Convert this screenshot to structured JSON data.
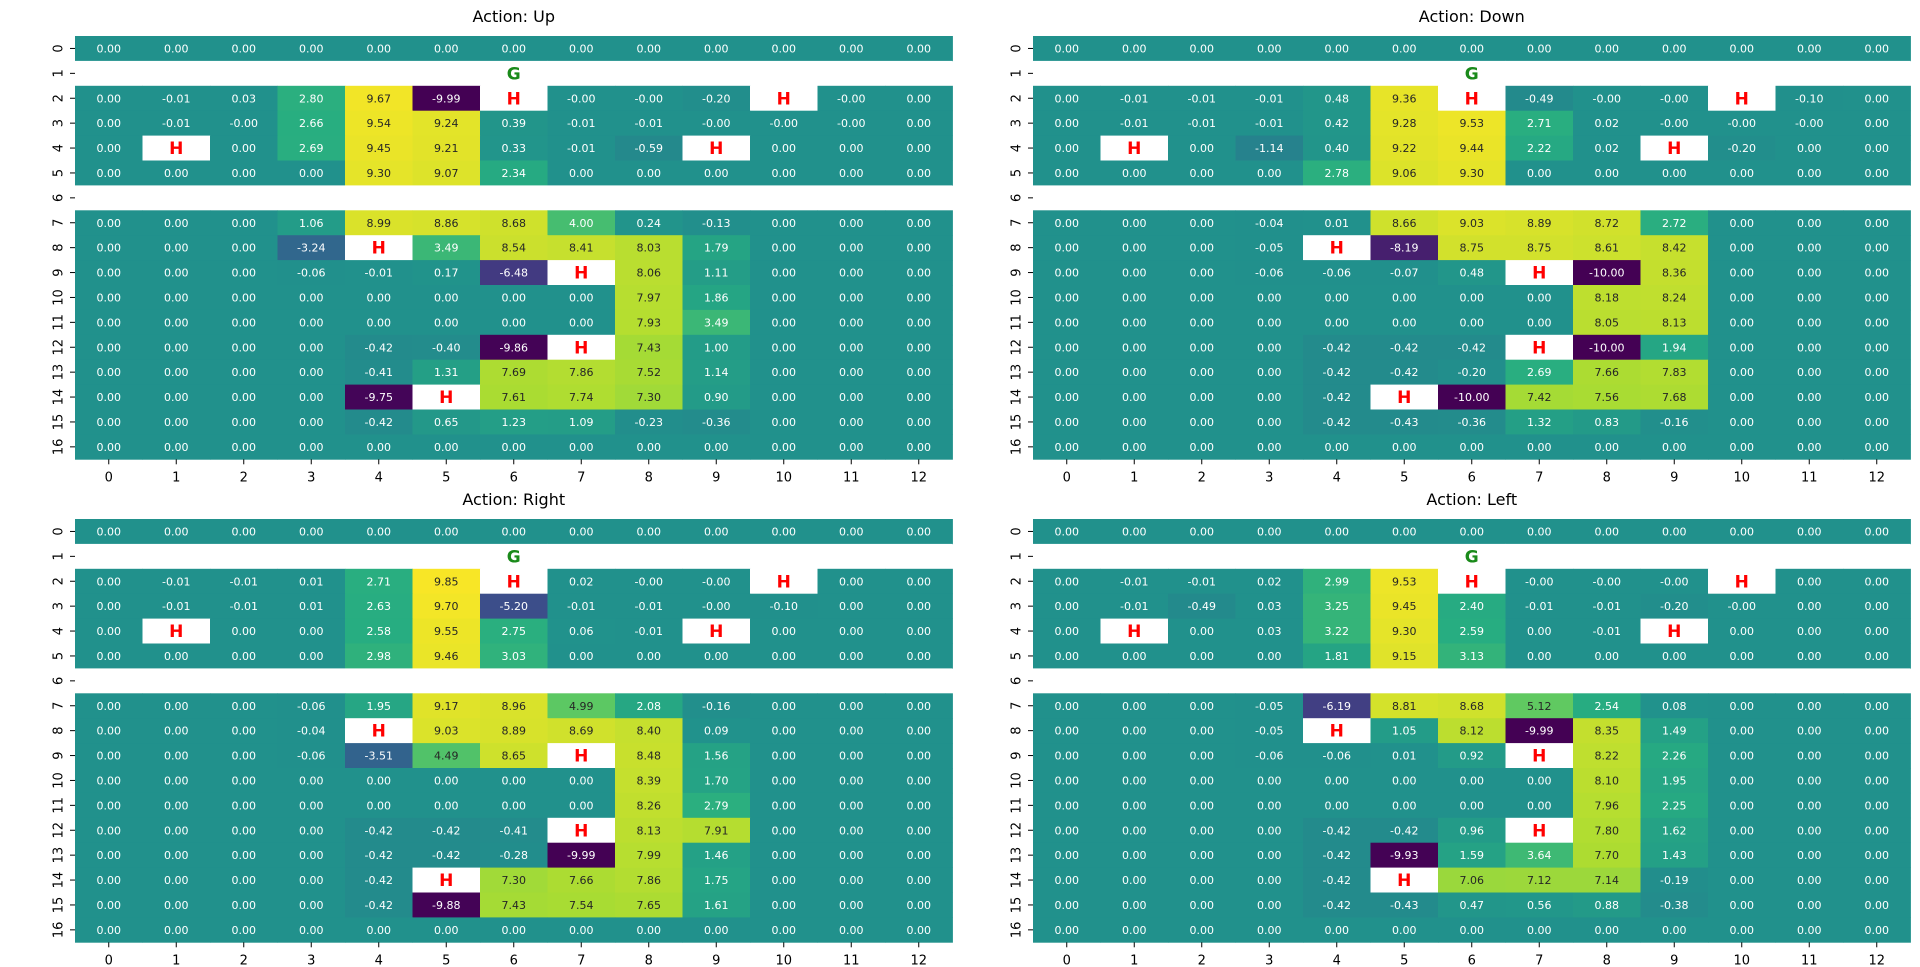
{
  "chart_data": [
    {
      "type": "heatmap",
      "title": "Action: Up",
      "xlabel": "",
      "ylabel": "",
      "x_ticks": [
        "0",
        "1",
        "2",
        "3",
        "4",
        "5",
        "6",
        "7",
        "8",
        "9",
        "10",
        "11",
        "12"
      ],
      "y_ticks": [
        "0",
        "1",
        "2",
        "3",
        "4",
        "5",
        "6",
        "7",
        "8",
        "9",
        "10",
        "11",
        "12",
        "13",
        "14",
        "15",
        "16"
      ],
      "colormap": "viridis",
      "value_range": [
        -10,
        10
      ],
      "rows": [
        [
          "0.00",
          "0.00",
          "0.00",
          "0.00",
          "0.00",
          "0.00",
          "0.00",
          "0.00",
          "0.00",
          "0.00",
          "0.00",
          "0.00",
          "0.00"
        ],
        [
          "",
          "",
          "",
          "",
          "",
          "",
          "G",
          "",
          "",
          "",
          "",
          "",
          ""
        ],
        [
          "0.00",
          "-0.01",
          "0.03",
          "2.80",
          "9.67",
          "-9.99",
          "H",
          "-0.00",
          "-0.00",
          "-0.20",
          "H",
          "-0.00",
          "0.00"
        ],
        [
          "0.00",
          "-0.01",
          "-0.00",
          "2.66",
          "9.54",
          "9.24",
          "0.39",
          "-0.01",
          "-0.01",
          "-0.00",
          "-0.00",
          "-0.00",
          "0.00"
        ],
        [
          "0.00",
          "H",
          "0.00",
          "2.69",
          "9.45",
          "9.21",
          "0.33",
          "-0.01",
          "-0.59",
          "H",
          "0.00",
          "0.00",
          "0.00"
        ],
        [
          "0.00",
          "0.00",
          "0.00",
          "0.00",
          "9.30",
          "9.07",
          "2.34",
          "0.00",
          "0.00",
          "0.00",
          "0.00",
          "0.00",
          "0.00"
        ],
        [
          "",
          "",
          "",
          "",
          "",
          "",
          "",
          "",
          "",
          "",
          "",
          "",
          ""
        ],
        [
          "0.00",
          "0.00",
          "0.00",
          "1.06",
          "8.99",
          "8.86",
          "8.68",
          "4.00",
          "0.24",
          "-0.13",
          "0.00",
          "0.00",
          "0.00"
        ],
        [
          "0.00",
          "0.00",
          "0.00",
          "-3.24",
          "H",
          "3.49",
          "8.54",
          "8.41",
          "8.03",
          "1.79",
          "0.00",
          "0.00",
          "0.00"
        ],
        [
          "0.00",
          "0.00",
          "0.00",
          "-0.06",
          "-0.01",
          "0.17",
          "-6.48",
          "H",
          "8.06",
          "1.11",
          "0.00",
          "0.00",
          "0.00"
        ],
        [
          "0.00",
          "0.00",
          "0.00",
          "0.00",
          "0.00",
          "0.00",
          "0.00",
          "0.00",
          "7.97",
          "1.86",
          "0.00",
          "0.00",
          "0.00"
        ],
        [
          "0.00",
          "0.00",
          "0.00",
          "0.00",
          "0.00",
          "0.00",
          "0.00",
          "0.00",
          "7.93",
          "3.49",
          "0.00",
          "0.00",
          "0.00"
        ],
        [
          "0.00",
          "0.00",
          "0.00",
          "0.00",
          "-0.42",
          "-0.40",
          "-9.86",
          "H",
          "7.43",
          "1.00",
          "0.00",
          "0.00",
          "0.00"
        ],
        [
          "0.00",
          "0.00",
          "0.00",
          "0.00",
          "-0.41",
          "1.31",
          "7.69",
          "7.86",
          "7.52",
          "1.14",
          "0.00",
          "0.00",
          "0.00"
        ],
        [
          "0.00",
          "0.00",
          "0.00",
          "0.00",
          "-9.75",
          "H",
          "7.61",
          "7.74",
          "7.30",
          "0.90",
          "0.00",
          "0.00",
          "0.00"
        ],
        [
          "0.00",
          "0.00",
          "0.00",
          "0.00",
          "-0.42",
          "0.65",
          "1.23",
          "1.09",
          "-0.23",
          "-0.36",
          "0.00",
          "0.00",
          "0.00"
        ],
        [
          "0.00",
          "0.00",
          "0.00",
          "0.00",
          "0.00",
          "0.00",
          "0.00",
          "0.00",
          "0.00",
          "0.00",
          "0.00",
          "0.00",
          "0.00"
        ]
      ]
    },
    {
      "type": "heatmap",
      "title": "Action: Down",
      "xlabel": "",
      "ylabel": "",
      "x_ticks": [
        "0",
        "1",
        "2",
        "3",
        "4",
        "5",
        "6",
        "7",
        "8",
        "9",
        "10",
        "11",
        "12"
      ],
      "y_ticks": [
        "0",
        "1",
        "2",
        "3",
        "4",
        "5",
        "6",
        "7",
        "8",
        "9",
        "10",
        "11",
        "12",
        "13",
        "14",
        "15",
        "16"
      ],
      "colormap": "viridis",
      "value_range": [
        -10,
        10
      ],
      "rows": [
        [
          "0.00",
          "0.00",
          "0.00",
          "0.00",
          "0.00",
          "0.00",
          "0.00",
          "0.00",
          "0.00",
          "0.00",
          "0.00",
          "0.00",
          "0.00"
        ],
        [
          "",
          "",
          "",
          "",
          "",
          "",
          "G",
          "",
          "",
          "",
          "",
          "",
          ""
        ],
        [
          "0.00",
          "-0.01",
          "-0.01",
          "-0.01",
          "0.48",
          "9.36",
          "H",
          "-0.49",
          "-0.00",
          "-0.00",
          "H",
          "-0.10",
          "0.00"
        ],
        [
          "0.00",
          "-0.01",
          "-0.01",
          "-0.01",
          "0.42",
          "9.28",
          "9.53",
          "2.71",
          "0.02",
          "-0.00",
          "-0.00",
          "-0.00",
          "0.00"
        ],
        [
          "0.00",
          "H",
          "0.00",
          "-1.14",
          "0.40",
          "9.22",
          "9.44",
          "2.22",
          "0.02",
          "H",
          "-0.20",
          "0.00",
          "0.00"
        ],
        [
          "0.00",
          "0.00",
          "0.00",
          "0.00",
          "2.78",
          "9.06",
          "9.30",
          "0.00",
          "0.00",
          "0.00",
          "0.00",
          "0.00",
          "0.00"
        ],
        [
          "",
          "",
          "",
          "",
          "",
          "",
          "",
          "",
          "",
          "",
          "",
          "",
          ""
        ],
        [
          "0.00",
          "0.00",
          "0.00",
          "-0.04",
          "0.01",
          "8.66",
          "9.03",
          "8.89",
          "8.72",
          "2.72",
          "0.00",
          "0.00",
          "0.00"
        ],
        [
          "0.00",
          "0.00",
          "0.00",
          "-0.05",
          "H",
          "-8.19",
          "8.75",
          "8.75",
          "8.61",
          "8.42",
          "0.00",
          "0.00",
          "0.00"
        ],
        [
          "0.00",
          "0.00",
          "0.00",
          "-0.06",
          "-0.06",
          "-0.07",
          "0.48",
          "H",
          "-10.00",
          "8.36",
          "0.00",
          "0.00",
          "0.00"
        ],
        [
          "0.00",
          "0.00",
          "0.00",
          "0.00",
          "0.00",
          "0.00",
          "0.00",
          "0.00",
          "8.18",
          "8.24",
          "0.00",
          "0.00",
          "0.00"
        ],
        [
          "0.00",
          "0.00",
          "0.00",
          "0.00",
          "0.00",
          "0.00",
          "0.00",
          "0.00",
          "8.05",
          "8.13",
          "0.00",
          "0.00",
          "0.00"
        ],
        [
          "0.00",
          "0.00",
          "0.00",
          "0.00",
          "-0.42",
          "-0.42",
          "-0.42",
          "H",
          "-10.00",
          "1.94",
          "0.00",
          "0.00",
          "0.00"
        ],
        [
          "0.00",
          "0.00",
          "0.00",
          "0.00",
          "-0.42",
          "-0.42",
          "-0.20",
          "2.69",
          "7.66",
          "7.83",
          "0.00",
          "0.00",
          "0.00"
        ],
        [
          "0.00",
          "0.00",
          "0.00",
          "0.00",
          "-0.42",
          "H",
          "-10.00",
          "7.42",
          "7.56",
          "7.68",
          "0.00",
          "0.00",
          "0.00"
        ],
        [
          "0.00",
          "0.00",
          "0.00",
          "0.00",
          "-0.42",
          "-0.43",
          "-0.36",
          "1.32",
          "0.83",
          "-0.16",
          "0.00",
          "0.00",
          "0.00"
        ],
        [
          "0.00",
          "0.00",
          "0.00",
          "0.00",
          "0.00",
          "0.00",
          "0.00",
          "0.00",
          "0.00",
          "0.00",
          "0.00",
          "0.00",
          "0.00"
        ]
      ]
    },
    {
      "type": "heatmap",
      "title": "Action: Right",
      "xlabel": "",
      "ylabel": "",
      "x_ticks": [
        "0",
        "1",
        "2",
        "3",
        "4",
        "5",
        "6",
        "7",
        "8",
        "9",
        "10",
        "11",
        "12"
      ],
      "y_ticks": [
        "0",
        "1",
        "2",
        "3",
        "4",
        "5",
        "6",
        "7",
        "8",
        "9",
        "10",
        "11",
        "12",
        "13",
        "14",
        "15",
        "16"
      ],
      "colormap": "viridis",
      "value_range": [
        -10,
        10
      ],
      "rows": [
        [
          "0.00",
          "0.00",
          "0.00",
          "0.00",
          "0.00",
          "0.00",
          "0.00",
          "0.00",
          "0.00",
          "0.00",
          "0.00",
          "0.00",
          "0.00"
        ],
        [
          "",
          "",
          "",
          "",
          "",
          "",
          "G",
          "",
          "",
          "",
          "",
          "",
          ""
        ],
        [
          "0.00",
          "-0.01",
          "-0.01",
          "0.01",
          "2.71",
          "9.85",
          "H",
          "0.02",
          "-0.00",
          "-0.00",
          "H",
          "0.00",
          "0.00"
        ],
        [
          "0.00",
          "-0.01",
          "-0.01",
          "0.01",
          "2.63",
          "9.70",
          "-5.20",
          "-0.01",
          "-0.01",
          "-0.00",
          "-0.10",
          "0.00",
          "0.00"
        ],
        [
          "0.00",
          "H",
          "0.00",
          "0.00",
          "2.58",
          "9.55",
          "2.75",
          "0.06",
          "-0.01",
          "H",
          "0.00",
          "0.00",
          "0.00"
        ],
        [
          "0.00",
          "0.00",
          "0.00",
          "0.00",
          "2.98",
          "9.46",
          "3.03",
          "0.00",
          "0.00",
          "0.00",
          "0.00",
          "0.00",
          "0.00"
        ],
        [
          "",
          "",
          "",
          "",
          "",
          "",
          "",
          "",
          "",
          "",
          "",
          "",
          ""
        ],
        [
          "0.00",
          "0.00",
          "0.00",
          "-0.06",
          "1.95",
          "9.17",
          "8.96",
          "4.99",
          "2.08",
          "-0.16",
          "0.00",
          "0.00",
          "0.00"
        ],
        [
          "0.00",
          "0.00",
          "0.00",
          "-0.04",
          "H",
          "9.03",
          "8.89",
          "8.69",
          "8.40",
          "0.09",
          "0.00",
          "0.00",
          "0.00"
        ],
        [
          "0.00",
          "0.00",
          "0.00",
          "-0.06",
          "-3.51",
          "4.49",
          "8.65",
          "H",
          "8.48",
          "1.56",
          "0.00",
          "0.00",
          "0.00"
        ],
        [
          "0.00",
          "0.00",
          "0.00",
          "0.00",
          "0.00",
          "0.00",
          "0.00",
          "0.00",
          "8.39",
          "1.70",
          "0.00",
          "0.00",
          "0.00"
        ],
        [
          "0.00",
          "0.00",
          "0.00",
          "0.00",
          "0.00",
          "0.00",
          "0.00",
          "0.00",
          "8.26",
          "2.79",
          "0.00",
          "0.00",
          "0.00"
        ],
        [
          "0.00",
          "0.00",
          "0.00",
          "0.00",
          "-0.42",
          "-0.42",
          "-0.41",
          "H",
          "8.13",
          "7.91",
          "0.00",
          "0.00",
          "0.00"
        ],
        [
          "0.00",
          "0.00",
          "0.00",
          "0.00",
          "-0.42",
          "-0.42",
          "-0.28",
          "-9.99",
          "7.99",
          "1.46",
          "0.00",
          "0.00",
          "0.00"
        ],
        [
          "0.00",
          "0.00",
          "0.00",
          "0.00",
          "-0.42",
          "H",
          "7.30",
          "7.66",
          "7.86",
          "1.75",
          "0.00",
          "0.00",
          "0.00"
        ],
        [
          "0.00",
          "0.00",
          "0.00",
          "0.00",
          "-0.42",
          "-9.88",
          "7.43",
          "7.54",
          "7.65",
          "1.61",
          "0.00",
          "0.00",
          "0.00"
        ],
        [
          "0.00",
          "0.00",
          "0.00",
          "0.00",
          "0.00",
          "0.00",
          "0.00",
          "0.00",
          "0.00",
          "0.00",
          "0.00",
          "0.00",
          "0.00"
        ]
      ]
    },
    {
      "type": "heatmap",
      "title": "Action: Left",
      "xlabel": "",
      "ylabel": "",
      "x_ticks": [
        "0",
        "1",
        "2",
        "3",
        "4",
        "5",
        "6",
        "7",
        "8",
        "9",
        "10",
        "11",
        "12"
      ],
      "y_ticks": [
        "0",
        "1",
        "2",
        "3",
        "4",
        "5",
        "6",
        "7",
        "8",
        "9",
        "10",
        "11",
        "12",
        "13",
        "14",
        "15",
        "16"
      ],
      "colormap": "viridis",
      "value_range": [
        -10,
        10
      ],
      "rows": [
        [
          "0.00",
          "0.00",
          "0.00",
          "0.00",
          "0.00",
          "0.00",
          "0.00",
          "0.00",
          "0.00",
          "0.00",
          "0.00",
          "0.00",
          "0.00"
        ],
        [
          "",
          "",
          "",
          "",
          "",
          "",
          "G",
          "",
          "",
          "",
          "",
          "",
          ""
        ],
        [
          "0.00",
          "-0.01",
          "-0.01",
          "0.02",
          "2.99",
          "9.53",
          "H",
          "-0.00",
          "-0.00",
          "-0.00",
          "H",
          "0.00",
          "0.00"
        ],
        [
          "0.00",
          "-0.01",
          "-0.49",
          "0.03",
          "3.25",
          "9.45",
          "2.40",
          "-0.01",
          "-0.01",
          "-0.20",
          "-0.00",
          "0.00",
          "0.00"
        ],
        [
          "0.00",
          "H",
          "0.00",
          "0.03",
          "3.22",
          "9.30",
          "2.59",
          "0.00",
          "-0.01",
          "H",
          "0.00",
          "0.00",
          "0.00"
        ],
        [
          "0.00",
          "0.00",
          "0.00",
          "0.00",
          "1.81",
          "9.15",
          "3.13",
          "0.00",
          "0.00",
          "0.00",
          "0.00",
          "0.00",
          "0.00"
        ],
        [
          "",
          "",
          "",
          "",
          "",
          "",
          "",
          "",
          "",
          "",
          "",
          "",
          ""
        ],
        [
          "0.00",
          "0.00",
          "0.00",
          "-0.05",
          "-6.19",
          "8.81",
          "8.68",
          "5.12",
          "2.54",
          "0.08",
          "0.00",
          "0.00",
          "0.00"
        ],
        [
          "0.00",
          "0.00",
          "0.00",
          "-0.05",
          "H",
          "1.05",
          "8.12",
          "-9.99",
          "8.35",
          "1.49",
          "0.00",
          "0.00",
          "0.00"
        ],
        [
          "0.00",
          "0.00",
          "0.00",
          "-0.06",
          "-0.06",
          "0.01",
          "0.92",
          "H",
          "8.22",
          "2.26",
          "0.00",
          "0.00",
          "0.00"
        ],
        [
          "0.00",
          "0.00",
          "0.00",
          "0.00",
          "0.00",
          "0.00",
          "0.00",
          "0.00",
          "8.10",
          "1.95",
          "0.00",
          "0.00",
          "0.00"
        ],
        [
          "0.00",
          "0.00",
          "0.00",
          "0.00",
          "0.00",
          "0.00",
          "0.00",
          "0.00",
          "7.96",
          "2.25",
          "0.00",
          "0.00",
          "0.00"
        ],
        [
          "0.00",
          "0.00",
          "0.00",
          "0.00",
          "-0.42",
          "-0.42",
          "0.96",
          "H",
          "7.80",
          "1.62",
          "0.00",
          "0.00",
          "0.00"
        ],
        [
          "0.00",
          "0.00",
          "0.00",
          "0.00",
          "-0.42",
          "-9.93",
          "1.59",
          "3.64",
          "7.70",
          "1.43",
          "0.00",
          "0.00",
          "0.00"
        ],
        [
          "0.00",
          "0.00",
          "0.00",
          "0.00",
          "-0.42",
          "H",
          "7.06",
          "7.12",
          "7.14",
          "-0.19",
          "0.00",
          "0.00",
          "0.00"
        ],
        [
          "0.00",
          "0.00",
          "0.00",
          "0.00",
          "-0.42",
          "-0.43",
          "0.47",
          "0.56",
          "0.88",
          "-0.38",
          "0.00",
          "0.00",
          "0.00"
        ],
        [
          "0.00",
          "0.00",
          "0.00",
          "0.00",
          "0.00",
          "0.00",
          "0.00",
          "0.00",
          "0.00",
          "0.00",
          "0.00",
          "0.00",
          "0.00"
        ]
      ]
    }
  ],
  "colors": {
    "hole_text": "#ff0000",
    "goal_text": "#1a8a1a",
    "marker_cell_background": "#ffffff"
  }
}
